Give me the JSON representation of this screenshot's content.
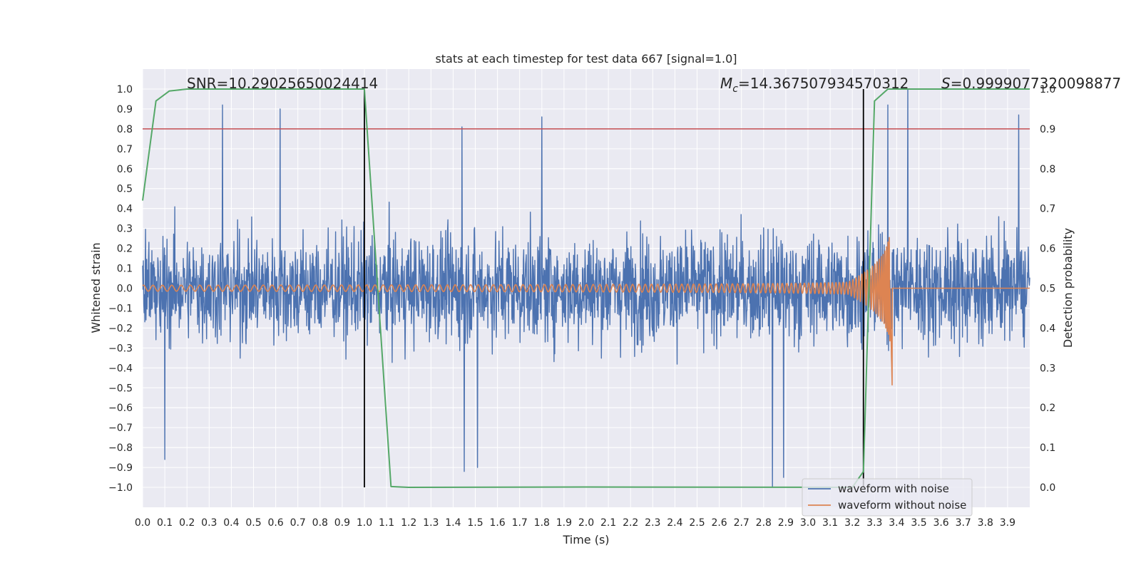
{
  "chart_data": {
    "type": "line",
    "title": "stats at each timestep for test data 667 [signal=1.0]",
    "xlabel": "Time (s)",
    "ylabel": "Whitened strain",
    "y2label": "Detection probability",
    "xlim": [
      0.0,
      4.0
    ],
    "ylim": [
      -1.1,
      1.1
    ],
    "y2lim": [
      -0.05,
      1.05
    ],
    "grid": true,
    "legend_position": "lower-right",
    "x_ticks": [
      "0.0",
      "0.1",
      "0.2",
      "0.3",
      "0.4",
      "0.5",
      "0.6",
      "0.7",
      "0.8",
      "0.9",
      "1.0",
      "1.1",
      "1.2",
      "1.3",
      "1.4",
      "1.5",
      "1.6",
      "1.7",
      "1.8",
      "1.9",
      "2.0",
      "2.1",
      "2.2",
      "2.3",
      "2.4",
      "2.5",
      "2.6",
      "2.7",
      "2.8",
      "2.9",
      "3.0",
      "3.1",
      "3.2",
      "3.3",
      "3.4",
      "3.5",
      "3.6",
      "3.7",
      "3.8",
      "3.9"
    ],
    "y_ticks": [
      "1.0",
      "0.9",
      "0.8",
      "0.7",
      "0.6",
      "0.5",
      "0.4",
      "0.3",
      "0.2",
      "0.1",
      "0.0",
      "−0.1",
      "−0.2",
      "−0.3",
      "−0.4",
      "−0.5",
      "−0.6",
      "−0.7",
      "−0.8",
      "−0.9",
      "−1.0"
    ],
    "y2_ticks": [
      "1.0",
      "0.9",
      "0.8",
      "0.7",
      "0.6",
      "0.5",
      "0.4",
      "0.3",
      "0.2",
      "0.1",
      "0.0"
    ],
    "annotations": {
      "snr": "SNR=10.29025650024414",
      "mc_symbol": "M",
      "mc_sub": "c",
      "mc_value": "=14.367507934570312",
      "s_symbol": "S",
      "s_value": "=0.9999077320098877"
    },
    "threshold": {
      "y2": 0.9,
      "color": "#c44e52"
    },
    "vlines": [
      1.0,
      3.25
    ],
    "series": [
      {
        "name": "waveform with noise",
        "color": "#4c72b0",
        "axis": "left",
        "kind": "noisy strain",
        "amplitude_envelope": 0.5,
        "peaks": [
          [
            0.36,
            0.92
          ],
          [
            0.62,
            0.9
          ],
          [
            1.44,
            0.81
          ],
          [
            1.8,
            0.86
          ],
          [
            3.36,
            0.92
          ],
          [
            3.45,
            1.0
          ],
          [
            3.95,
            0.87
          ],
          [
            0.1,
            -0.86
          ],
          [
            1.45,
            -0.92
          ],
          [
            1.51,
            -0.9
          ],
          [
            2.84,
            -1.0
          ],
          [
            2.89,
            -0.95
          ]
        ]
      },
      {
        "name": "waveform without noise",
        "color": "#dd8452",
        "axis": "left",
        "kind": "chirp",
        "start_amplitude": 0.015,
        "peak_amplitude": 0.39,
        "min_value": -0.52,
        "merger_time": 3.38
      },
      {
        "name": "",
        "color": "#55a868",
        "axis": "right",
        "x": [
          0.0,
          0.06,
          0.12,
          0.2,
          1.0,
          1.12,
          1.2,
          2.0,
          3.2,
          3.25,
          3.3,
          3.36,
          4.0
        ],
        "y": [
          0.72,
          0.97,
          0.995,
          1.0,
          1.0,
          0.002,
          0.0,
          0.001,
          0.0,
          0.04,
          0.97,
          1.0,
          1.0
        ]
      }
    ]
  }
}
